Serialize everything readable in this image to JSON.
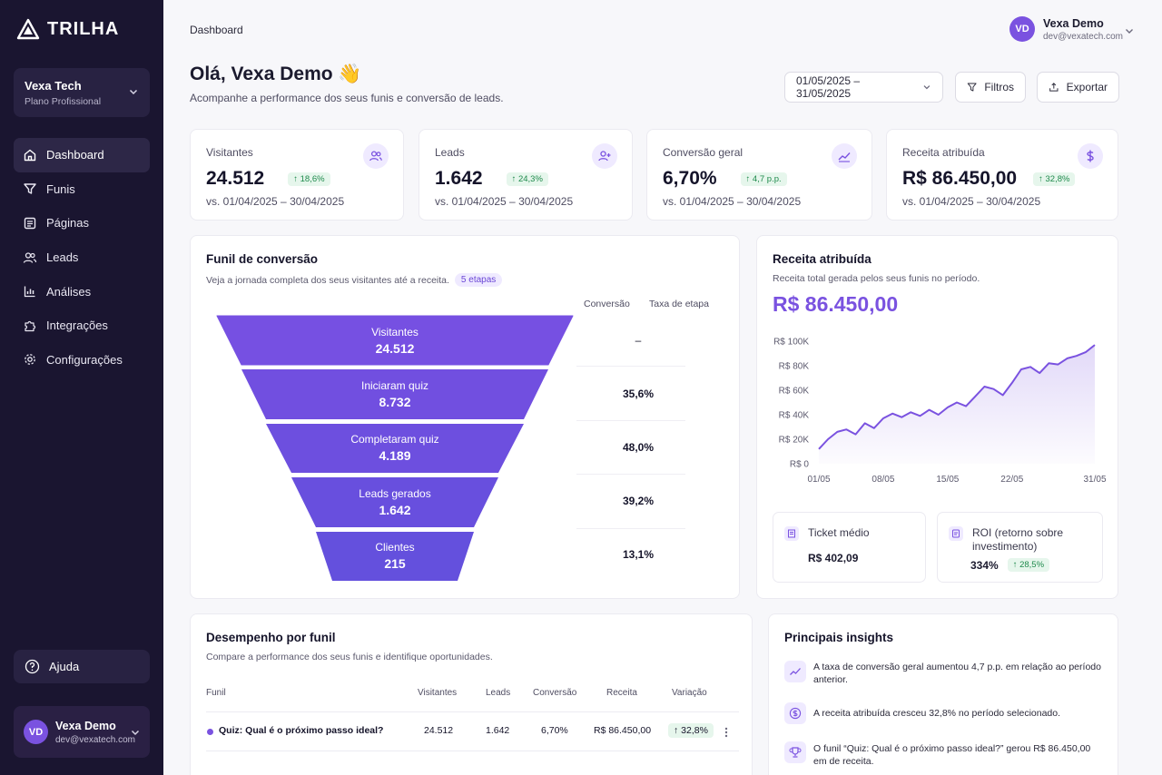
{
  "brand": {
    "name": "TRILHA"
  },
  "org": {
    "name": "Vexa Tech",
    "plan": "Plano Profissional"
  },
  "nav": [
    {
      "label": "Dashboard",
      "icon": "home-icon"
    },
    {
      "label": "Funis",
      "icon": "funnel-icon"
    },
    {
      "label": "Páginas",
      "icon": "page-icon"
    },
    {
      "label": "Leads",
      "icon": "users-icon"
    },
    {
      "label": "Análises",
      "icon": "chart-icon"
    },
    {
      "label": "Integrações",
      "icon": "puzzle-icon"
    },
    {
      "label": "Configurações",
      "icon": "gear-icon"
    }
  ],
  "help": {
    "label": "Ajuda"
  },
  "user": {
    "initials": "VD",
    "name": "Vexa Demo",
    "email": "dev@vexatech.com"
  },
  "header": {
    "breadcrumb": "Dashboard",
    "greeting": "Olá, Vexa Demo 👋",
    "subtitle": "Acompanhe a performance dos seus funis e conversão de leads.",
    "date_range": "01/05/2025 – 31/05/2025",
    "filters_label": "Filtros",
    "export_label": "Exportar"
  },
  "kpis": [
    {
      "label": "Visitantes",
      "value": "24.512",
      "delta": "↑ 18,6%",
      "compare": "vs. 01/04/2025 – 30/04/2025",
      "icon": "users-icon"
    },
    {
      "label": "Leads",
      "value": "1.642",
      "delta": "↑ 24,3%",
      "compare": "vs. 01/04/2025 – 30/04/2025",
      "icon": "user-plus-icon"
    },
    {
      "label": "Conversão geral",
      "value": "6,70%",
      "delta": "↑ 4,7 p.p.",
      "compare": "vs. 01/04/2025 – 30/04/2025",
      "icon": "trend-up-icon"
    },
    {
      "label": "Receita atribuída",
      "value": "R$ 86.450,00",
      "delta": "↑ 32,8%",
      "compare": "vs. 01/04/2025 – 30/04/2025",
      "icon": "dollar-icon"
    }
  ],
  "funnel": {
    "title": "Funil de conversão",
    "subtitle": "Veja a jornada completa dos seus visitantes até a receita.",
    "badge": "5 etapas",
    "col_conversion": "Conversão",
    "col_stage_rate": "Taxa de etapa",
    "stages": [
      {
        "name": "Visitantes",
        "value": "24.512",
        "rate": "–"
      },
      {
        "name": "Iniciaram quiz",
        "value": "8.732",
        "rate": "35,6%"
      },
      {
        "name": "Completaram quiz",
        "value": "4.189",
        "rate": "48,0%"
      },
      {
        "name": "Leads gerados",
        "value": "1.642",
        "rate": "39,2%"
      },
      {
        "name": "Clientes",
        "value": "215",
        "rate": "13,1%"
      }
    ],
    "colors": [
      "#7650e2",
      "#714fe0",
      "#6d4fdf",
      "#684fde",
      "#6450dd"
    ]
  },
  "revenue": {
    "title": "Receita atribuída",
    "subtitle": "Receita total gerada pelos seus funis no período.",
    "total": "R$ 86.450,00",
    "ticket_label": "Ticket médio",
    "ticket_value": "R$ 402,09",
    "roi_label": "ROI (retorno sobre investimento)",
    "roi_value": "334%",
    "roi_delta": "↑ 28,5%"
  },
  "chart_data": {
    "type": "area",
    "title": "",
    "xlabel": "",
    "ylabel": "",
    "ylim": [
      0,
      100000
    ],
    "y_ticks": [
      "R$ 0",
      "R$ 20K",
      "R$ 40K",
      "R$ 60K",
      "R$ 80K",
      "R$ 100K"
    ],
    "y_tick_values": [
      0,
      20000,
      40000,
      60000,
      80000,
      100000
    ],
    "x_ticks": [
      "01/05",
      "08/05",
      "15/05",
      "22/05",
      "31/05"
    ],
    "x": [
      1,
      2,
      3,
      4,
      5,
      6,
      7,
      8,
      9,
      10,
      11,
      12,
      13,
      14,
      15,
      16,
      17,
      18,
      19,
      20,
      21,
      22,
      23,
      24,
      25,
      26,
      27,
      28,
      29,
      30,
      31
    ],
    "values": [
      12000,
      20000,
      26000,
      28000,
      24000,
      33000,
      29000,
      37000,
      41000,
      38000,
      42000,
      39000,
      44000,
      40000,
      46000,
      50000,
      47000,
      55000,
      63000,
      61000,
      56000,
      66000,
      77000,
      79000,
      74000,
      82000,
      81000,
      86000,
      88000,
      91000,
      97000
    ],
    "color": "#7a52e0",
    "grid": false
  },
  "performance": {
    "title": "Desempenho por funil",
    "subtitle": "Compare a performance dos seus funis e identifique oportunidades.",
    "columns": [
      "Funil",
      "Visitantes",
      "Leads",
      "Conversão",
      "Receita",
      "Variação"
    ],
    "rows": [
      {
        "funnel": "Quiz: Qual é o próximo passo ideal?",
        "visitors": "24.512",
        "leads": "1.642",
        "conversion": "6,70%",
        "revenue": "R$ 86.450,00",
        "variation": "↑ 32,8%"
      }
    ]
  },
  "insights": {
    "title": "Principais insights",
    "items": [
      {
        "text": "A taxa de conversão geral aumentou 4,7 p.p. em relação ao período anterior.",
        "icon": "trend-up-icon"
      },
      {
        "text": "A receita atribuída cresceu 32,8% no período selecionado.",
        "icon": "dollar-icon"
      },
      {
        "text": "O funil “Quiz: Qual é o próximo passo ideal?” gerou R$ 86.450,00 em de receita.",
        "icon": "trophy-icon"
      }
    ]
  }
}
